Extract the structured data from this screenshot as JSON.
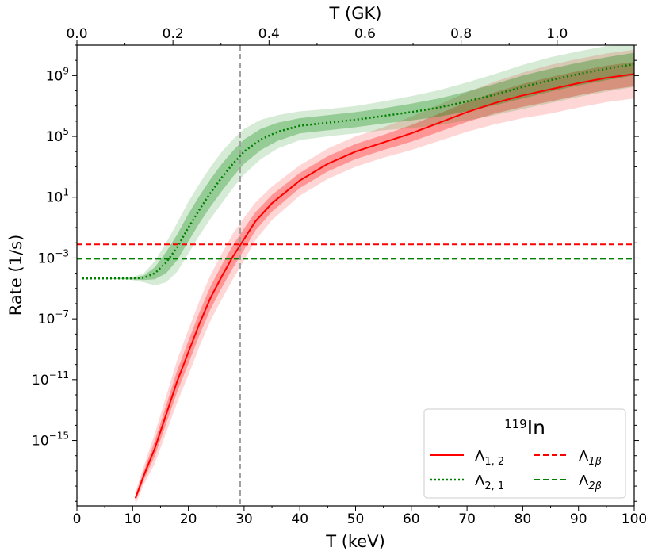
{
  "chart_data": {
    "type": "line",
    "title": "",
    "xlabel": "T (keV)",
    "x2label": "T (GK)",
    "ylabel": "Rate (1/s)",
    "xlim": [
      0,
      100
    ],
    "ylim_log10": [
      -19.3,
      11
    ],
    "yscale": "log",
    "grid": false,
    "x_ticks": [
      0,
      10,
      20,
      30,
      40,
      50,
      60,
      70,
      80,
      90,
      100
    ],
    "x_tick_labels": [
      "0",
      "10",
      "20",
      "30",
      "40",
      "50",
      "60",
      "70",
      "80",
      "90",
      "100"
    ],
    "x2_ticks_GK": [
      0.0,
      0.2,
      0.4,
      0.6,
      0.8,
      1.0
    ],
    "x2_tick_labels": [
      "0.0",
      "0.2",
      "0.4",
      "0.6",
      "0.8",
      "1.0"
    ],
    "y_tick_exponents": [
      -15,
      -11,
      -7,
      -3,
      1,
      5,
      9
    ],
    "y_tick_base": "10",
    "vertical_line_keV": 29.3,
    "legend": {
      "title_sup": "119",
      "title_main": "In",
      "placement": "lower-right",
      "entries": [
        {
          "key": "lam12",
          "base": "Λ",
          "sub": "1, 2",
          "style": "solid",
          "color": "#ff0000"
        },
        {
          "key": "lam1b",
          "base": "Λ",
          "sub": "1β",
          "style": "dashed",
          "color": "#ff0000"
        },
        {
          "key": "lam21",
          "base": "Λ",
          "sub": "2, 1",
          "style": "dotted",
          "color": "#008000"
        },
        {
          "key": "lam2b",
          "base": "Λ",
          "sub": "2β",
          "style": "dashed",
          "color": "#008000"
        }
      ]
    },
    "series": [
      {
        "name": "Λ1,2",
        "color": "#ff0000",
        "style": "solid",
        "x": [
          10.5,
          12,
          14,
          16,
          18,
          20,
          22,
          24,
          26,
          28,
          30,
          32,
          35,
          40,
          45,
          50,
          55,
          60,
          65,
          70,
          75,
          80,
          85,
          90,
          95,
          100
        ],
        "log10_y": [
          -18.8,
          -17.3,
          -15.5,
          -13.3,
          -11.1,
          -9.2,
          -7.3,
          -5.6,
          -4.2,
          -2.9,
          -1.75,
          -0.6,
          0.6,
          2.1,
          3.2,
          4.0,
          4.6,
          5.2,
          5.9,
          6.6,
          7.2,
          7.7,
          8.1,
          8.5,
          8.85,
          9.1
        ],
        "band_inner_halfwidth_log10": [
          0.2,
          0.3,
          0.5,
          0.6,
          0.7,
          0.75,
          0.75,
          0.75,
          0.75,
          0.75,
          0.7,
          0.6,
          0.55,
          0.5,
          0.5,
          0.5,
          0.5,
          0.55,
          0.6,
          0.65,
          0.7,
          0.75,
          0.8,
          0.8,
          0.8,
          0.8
        ],
        "band_outer_halfwidth_log10": [
          0.4,
          0.6,
          1.0,
          1.2,
          1.4,
          1.5,
          1.5,
          1.5,
          1.5,
          1.5,
          1.4,
          1.25,
          1.1,
          1.0,
          1.0,
          1.0,
          1.0,
          1.1,
          1.2,
          1.3,
          1.4,
          1.5,
          1.6,
          1.6,
          1.6,
          1.6
        ]
      },
      {
        "name": "Λ2,1",
        "color": "#008000",
        "style": "dotted",
        "x": [
          1,
          5,
          10,
          12,
          14,
          16,
          18,
          20,
          22,
          24,
          26,
          28,
          30,
          33,
          36,
          40,
          45,
          50,
          55,
          60,
          65,
          70,
          75,
          80,
          85,
          90,
          95,
          100
        ],
        "log10_y": [
          -4.35,
          -4.35,
          -4.35,
          -4.3,
          -4.0,
          -3.3,
          -2.3,
          -1.0,
          0.2,
          1.3,
          2.3,
          3.2,
          4.0,
          4.8,
          5.3,
          5.7,
          5.9,
          6.1,
          6.35,
          6.6,
          6.9,
          7.3,
          7.75,
          8.25,
          8.7,
          9.1,
          9.45,
          9.75
        ],
        "band_inner_halfwidth_log10": [
          0.0,
          0.0,
          0.05,
          0.15,
          0.4,
          0.7,
          0.85,
          0.9,
          0.9,
          0.9,
          0.9,
          0.85,
          0.8,
          0.7,
          0.6,
          0.5,
          0.5,
          0.5,
          0.5,
          0.55,
          0.6,
          0.65,
          0.7,
          0.75,
          0.75,
          0.75,
          0.75,
          0.75
        ],
        "band_outer_halfwidth_log10": [
          0.0,
          0.0,
          0.1,
          0.3,
          0.8,
          1.3,
          1.6,
          1.7,
          1.7,
          1.7,
          1.7,
          1.6,
          1.5,
          1.3,
          1.1,
          0.95,
          0.9,
          0.9,
          0.95,
          1.05,
          1.15,
          1.25,
          1.35,
          1.45,
          1.5,
          1.5,
          1.5,
          1.5
        ]
      },
      {
        "name": "Λ1β",
        "color": "#ff0000",
        "style": "dashed",
        "x": [
          0,
          100
        ],
        "log10_y": [
          -2.1,
          -2.1
        ]
      },
      {
        "name": "Λ2β",
        "color": "#008000",
        "style": "dashed",
        "x": [
          0,
          100
        ],
        "log10_y": [
          -3.05,
          -3.05
        ]
      }
    ]
  }
}
